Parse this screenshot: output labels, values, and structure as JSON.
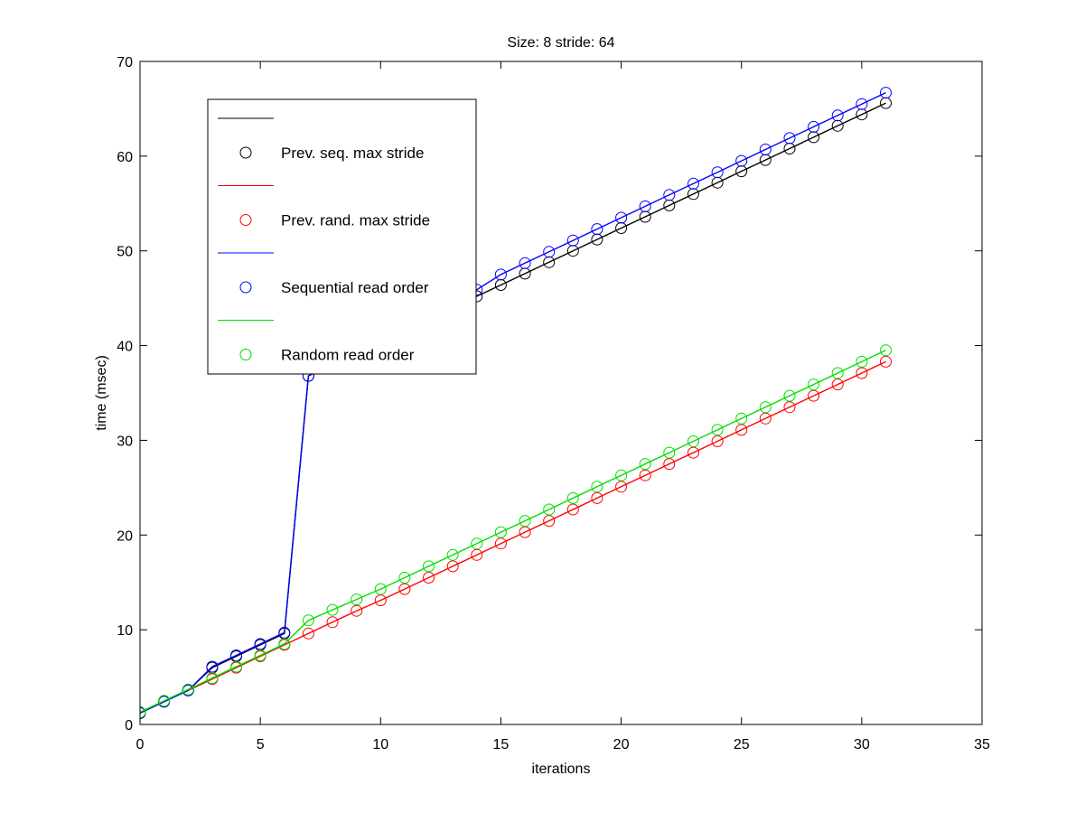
{
  "chart_data": {
    "type": "line",
    "title": "Size: 8 stride: 64",
    "xlabel": "iterations",
    "ylabel": "time (msec)",
    "xlim": [
      0,
      35
    ],
    "ylim": [
      0,
      70
    ],
    "xticks": [
      0,
      5,
      10,
      15,
      20,
      25,
      30,
      35
    ],
    "yticks": [
      0,
      10,
      20,
      30,
      40,
      50,
      60,
      70
    ],
    "grid": false,
    "legend_position": "upper-left",
    "x": [
      0,
      1,
      2,
      3,
      4,
      5,
      6,
      7,
      8,
      9,
      10,
      11,
      12,
      13,
      14,
      15,
      16,
      17,
      18,
      19,
      20,
      21,
      22,
      23,
      24,
      25,
      26,
      27,
      28,
      29,
      30,
      31
    ],
    "series": [
      {
        "name": "Prev. seq. max stride",
        "color": "#000000",
        "marker": "circle",
        "values": [
          1.2,
          2.4,
          3.6,
          6.0,
          7.2,
          8.4,
          9.6,
          36.8,
          38.0,
          39.2,
          40.4,
          41.6,
          42.8,
          44.0,
          45.2,
          46.4,
          47.6,
          48.8,
          50.0,
          51.2,
          52.4,
          53.6,
          54.8,
          56.0,
          57.2,
          58.4,
          59.6,
          60.8,
          62.0,
          63.2,
          64.4,
          65.6
        ]
      },
      {
        "name": "Prev. rand. max stride",
        "color": "#ff0000",
        "marker": "circle",
        "values": [
          1.2,
          2.4,
          3.6,
          4.8,
          6.0,
          7.2,
          8.4,
          9.6,
          10.8,
          12.0,
          13.1,
          14.3,
          15.5,
          16.7,
          17.9,
          19.1,
          20.3,
          21.5,
          22.7,
          23.9,
          25.1,
          26.3,
          27.5,
          28.7,
          29.9,
          31.1,
          32.3,
          33.5,
          34.7,
          35.9,
          37.1,
          38.3
        ]
      },
      {
        "name": "Sequential read order",
        "color": "#0000ff",
        "marker": "circle",
        "values": [
          1.2,
          2.4,
          3.6,
          6.1,
          7.3,
          8.5,
          9.7,
          36.8,
          38.4,
          39.6,
          40.8,
          42.0,
          43.2,
          44.4,
          45.9,
          47.5,
          48.7,
          49.9,
          51.1,
          52.3,
          53.5,
          54.7,
          55.9,
          57.1,
          58.3,
          59.5,
          60.7,
          61.9,
          63.1,
          64.3,
          65.5,
          66.7
        ]
      },
      {
        "name": "Random read order",
        "color": "#00dd00",
        "marker": "circle",
        "values": [
          1.3,
          2.5,
          3.7,
          4.9,
          6.1,
          7.3,
          8.5,
          11.0,
          12.1,
          13.2,
          14.3,
          15.5,
          16.7,
          17.9,
          19.1,
          20.3,
          21.5,
          22.7,
          23.9,
          25.1,
          26.3,
          27.5,
          28.7,
          29.9,
          31.1,
          32.3,
          33.5,
          34.7,
          35.9,
          37.1,
          38.3,
          39.5
        ]
      }
    ]
  }
}
